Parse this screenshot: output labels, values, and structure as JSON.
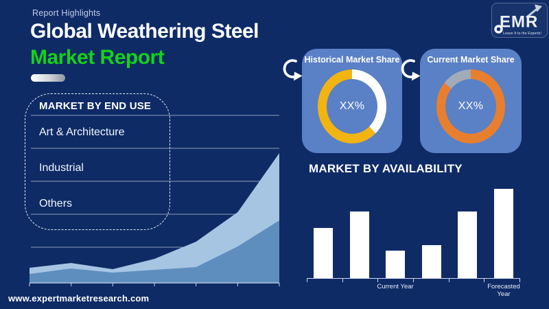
{
  "page": {
    "eyebrow": "Report Highlights",
    "title_line1": "Global Weathering Steel",
    "title_line2": "Market Report",
    "website": "www.expertmarketresearch.com"
  },
  "logo": {
    "text": "EMR",
    "tagline": "Leave It to the Experts!"
  },
  "colors": {
    "background": "#0e2b66",
    "card_blue": "#5a80c6",
    "accent_green": "#16d11a",
    "donut_yellow": "#f2b411",
    "donut_white": "#ffffff",
    "donut_orange": "#e87f2e",
    "donut_gray": "#a2abb8",
    "area_light": "#a6c5e3",
    "area_medium": "#5e8ebd",
    "bar_fill": "#ffffff",
    "axis": "#ccd6ea"
  },
  "end_use_panel": {
    "title": "MARKET BY END USE",
    "items": [
      "Art & Architecture",
      "Industrial",
      "Others"
    ]
  },
  "share_cards": [
    {
      "title": "Historical Market Share",
      "center_label": "XX%"
    },
    {
      "title": "Current Market Share",
      "center_label": "XX%"
    }
  ],
  "availability_section": {
    "title": "MARKET BY AVAILABILITY",
    "x_labels": [
      {
        "text": "Current Year",
        "bar_index": 2
      },
      {
        "text": "Forecasted Year",
        "bar_index": 5
      }
    ]
  },
  "chart_data": [
    {
      "type": "area",
      "title": "End-use market trend (decorative backdrop, unlabeled axes)",
      "x": [
        0,
        1,
        2,
        3,
        4,
        5,
        6
      ],
      "series": [
        {
          "name": "upper-band",
          "values": [
            22,
            29,
            20,
            35,
            60,
            103,
            189
          ]
        },
        {
          "name": "lower-band",
          "values": [
            13,
            21,
            15,
            19,
            23,
            53,
            91
          ]
        }
      ],
      "ylim": [
        0,
        200
      ],
      "grid": "horizontal",
      "legend": "none",
      "tick_labels": "none"
    },
    {
      "type": "pie",
      "donut": true,
      "title": "Historical Market Share",
      "center_label": "XX%",
      "slices": [
        {
          "label": "remainder",
          "value": 38,
          "color": "#ffffff"
        },
        {
          "label": "historical share",
          "value": 62,
          "color": "#f2b411"
        }
      ]
    },
    {
      "type": "pie",
      "donut": true,
      "title": "Current Market Share",
      "center_label": "XX%",
      "slices": [
        {
          "label": "current share",
          "value": 86,
          "color": "#e87f2e"
        },
        {
          "label": "remainder",
          "value": 14,
          "color": "#a2abb8"
        }
      ]
    },
    {
      "type": "bar",
      "title": "Market by Availability",
      "categories": [
        "",
        "",
        "Current Year",
        "",
        "",
        "Forecasted Year"
      ],
      "values": [
        56,
        75,
        31,
        37,
        75,
        100
      ],
      "ylim": [
        0,
        100
      ],
      "bar_color": "#ffffff",
      "tick_labels": "only Current Year and Forecasted Year shown"
    }
  ]
}
